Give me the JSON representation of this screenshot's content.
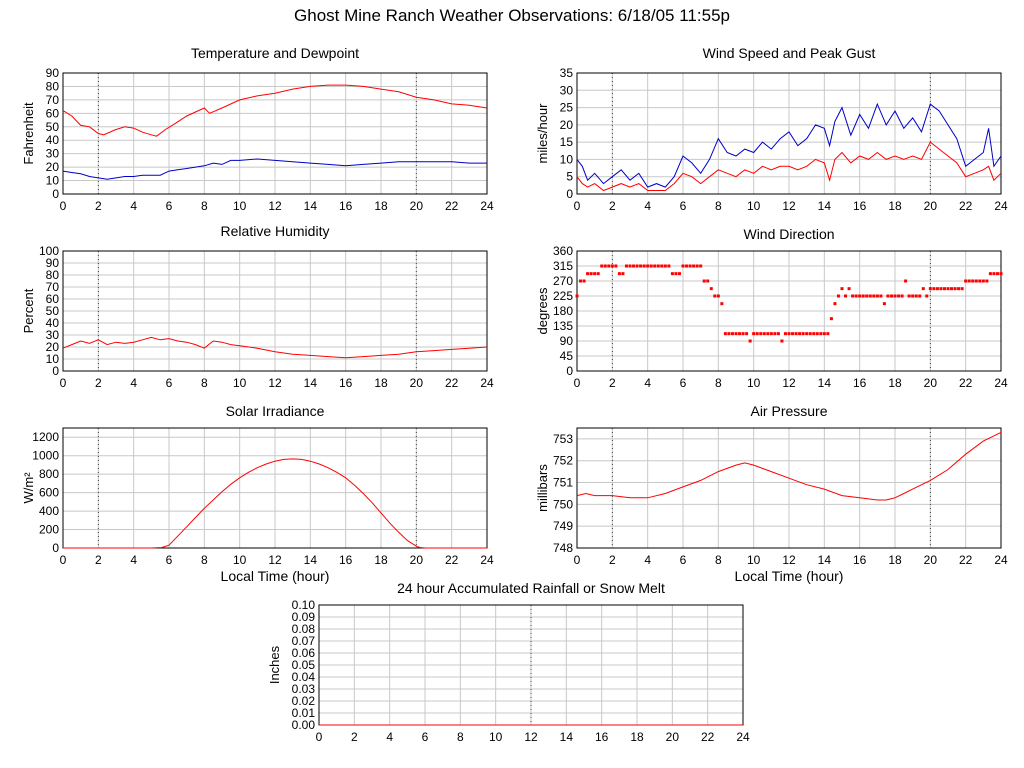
{
  "page_title": "Ghost Mine Ranch Weather Observations: 6/18/05 11:55p",
  "colors": {
    "grid": "#c8c8c8",
    "series_red": "#ff0000",
    "series_blue": "#0000c8",
    "axis": "#000000"
  },
  "chart_data": [
    {
      "id": "temp",
      "type": "line",
      "title": "Temperature and Dewpoint",
      "xlabel": "",
      "ylabel": "Fahrenheit",
      "xlim": [
        0,
        24
      ],
      "ylim": [
        0,
        90
      ],
      "xticks": [
        0,
        2,
        4,
        6,
        8,
        10,
        12,
        14,
        16,
        18,
        20,
        22,
        24
      ],
      "yticks": [
        0,
        10,
        20,
        30,
        40,
        50,
        60,
        70,
        80,
        90
      ],
      "series": [
        {
          "color": "#ff0000",
          "x": [
            0,
            0.5,
            1,
            1.5,
            2,
            2.3,
            3,
            3.5,
            4,
            4.5,
            5,
            5.3,
            5.8,
            6.3,
            7,
            8,
            8.3,
            9,
            10,
            11,
            12,
            13,
            14,
            15,
            16,
            17,
            18,
            19,
            20,
            21,
            22,
            23,
            24
          ],
          "y": [
            62,
            58,
            51,
            50,
            45,
            44,
            48,
            50,
            49,
            46,
            44,
            43,
            48,
            52,
            58,
            64,
            60,
            64,
            70,
            73,
            75,
            78,
            80,
            81,
            81,
            80,
            78,
            76,
            72,
            70,
            67,
            66,
            64
          ]
        },
        {
          "color": "#0000c8",
          "x": [
            0,
            0.5,
            1,
            1.5,
            2,
            2.5,
            3,
            3.5,
            4,
            4.5,
            5,
            5.5,
            6,
            6.5,
            7,
            7.5,
            8,
            8.5,
            9,
            9.5,
            10,
            11,
            12,
            13,
            14,
            15,
            16,
            17,
            18,
            19,
            20,
            21,
            22,
            23,
            24
          ],
          "y": [
            17,
            16,
            15,
            13,
            12,
            11,
            12,
            13,
            13,
            14,
            14,
            14,
            17,
            18,
            19,
            20,
            21,
            23,
            22,
            25,
            25,
            26,
            25,
            24,
            23,
            22,
            21,
            22,
            23,
            24,
            24,
            24,
            24,
            23,
            23
          ]
        }
      ]
    },
    {
      "id": "wind",
      "type": "line",
      "title": "Wind Speed and Peak Gust",
      "xlabel": "",
      "ylabel": "miles/hour",
      "xlim": [
        0,
        24
      ],
      "ylim": [
        0,
        35
      ],
      "xticks": [
        0,
        2,
        4,
        6,
        8,
        10,
        12,
        14,
        16,
        18,
        20,
        22,
        24
      ],
      "yticks": [
        0,
        5,
        10,
        15,
        20,
        25,
        30,
        35
      ],
      "series": [
        {
          "color": "#0000c8",
          "x": [
            0,
            0.3,
            0.6,
            1,
            1.5,
            2,
            2.5,
            3,
            3.5,
            4,
            4.5,
            5,
            5.5,
            6,
            6.5,
            7,
            7.5,
            8,
            8.5,
            9,
            9.5,
            10,
            10.5,
            11,
            11.5,
            12,
            12.5,
            13,
            13.5,
            14,
            14.3,
            14.6,
            15,
            15.5,
            16,
            16.5,
            17,
            17.5,
            18,
            18.5,
            19,
            19.5,
            20,
            20.5,
            21,
            21.5,
            22,
            22.5,
            23,
            23.3,
            23.6,
            24
          ],
          "y": [
            10,
            8,
            4,
            6,
            3,
            5,
            7,
            4,
            6,
            2,
            3,
            2,
            5,
            11,
            9,
            6,
            10,
            16,
            12,
            11,
            13,
            12,
            15,
            13,
            16,
            18,
            14,
            16,
            20,
            19,
            14,
            21,
            25,
            17,
            23,
            19,
            26,
            20,
            24,
            19,
            22,
            18,
            26,
            24,
            20,
            16,
            8,
            10,
            12,
            19,
            8,
            11
          ]
        },
        {
          "color": "#ff0000",
          "x": [
            0,
            0.3,
            0.6,
            1,
            1.5,
            2,
            2.5,
            3,
            3.5,
            4,
            4.5,
            5,
            5.5,
            6,
            6.5,
            7,
            7.5,
            8,
            8.5,
            9,
            9.5,
            10,
            10.5,
            11,
            11.5,
            12,
            12.5,
            13,
            13.5,
            14,
            14.3,
            14.6,
            15,
            15.5,
            16,
            16.5,
            17,
            17.5,
            18,
            18.5,
            19,
            19.5,
            20,
            20.5,
            21,
            21.5,
            22,
            22.5,
            23,
            23.3,
            23.6,
            24
          ],
          "y": [
            5,
            3,
            2,
            3,
            1,
            2,
            3,
            2,
            3,
            1,
            1,
            1,
            3,
            6,
            5,
            3,
            5,
            7,
            6,
            5,
            7,
            6,
            8,
            7,
            8,
            8,
            7,
            8,
            10,
            9,
            4,
            10,
            12,
            9,
            11,
            10,
            12,
            10,
            11,
            10,
            11,
            10,
            15,
            13,
            11,
            9,
            5,
            6,
            7,
            8,
            4,
            6
          ]
        }
      ]
    },
    {
      "id": "rh",
      "type": "line",
      "title": "Relative Humidity",
      "xlabel": "",
      "ylabel": "Percent",
      "xlim": [
        0,
        24
      ],
      "ylim": [
        0,
        100
      ],
      "xticks": [
        0,
        2,
        4,
        6,
        8,
        10,
        12,
        14,
        16,
        18,
        20,
        22,
        24
      ],
      "yticks": [
        0,
        10,
        20,
        30,
        40,
        50,
        60,
        70,
        80,
        90,
        100
      ],
      "series": [
        {
          "color": "#ff0000",
          "x": [
            0,
            0.5,
            1,
            1.5,
            2,
            2.5,
            3,
            3.5,
            4,
            4.5,
            5,
            5.5,
            6,
            6.5,
            7,
            7.5,
            8,
            8.5,
            9,
            9.5,
            10,
            11,
            12,
            13,
            14,
            15,
            16,
            17,
            18,
            19,
            20,
            21,
            22,
            23,
            24
          ],
          "y": [
            19,
            22,
            25,
            23,
            26,
            22,
            24,
            23,
            24,
            26,
            28,
            26,
            27,
            25,
            24,
            22,
            19,
            25,
            24,
            22,
            21,
            19,
            16,
            14,
            13,
            12,
            11,
            12,
            13,
            14,
            16,
            17,
            18,
            19,
            20
          ]
        }
      ]
    },
    {
      "id": "winddir",
      "type": "scatter",
      "title": "Wind Direction",
      "xlabel": "",
      "ylabel": "degrees",
      "xlim": [
        0,
        24
      ],
      "ylim": [
        0,
        360
      ],
      "xticks": [
        0,
        2,
        4,
        6,
        8,
        10,
        12,
        14,
        16,
        18,
        20,
        22,
        24
      ],
      "yticks": [
        0,
        45,
        90,
        135,
        180,
        225,
        270,
        315,
        360
      ],
      "series": [
        {
          "color": "#ff0000",
          "x": [
            0,
            0.2,
            0.4,
            0.6,
            0.8,
            1.0,
            1.2,
            1.4,
            1.6,
            1.8,
            2.0,
            2.2,
            2.4,
            2.6,
            2.8,
            3.0,
            3.2,
            3.4,
            3.6,
            3.8,
            4.0,
            4.2,
            4.4,
            4.6,
            4.8,
            5.0,
            5.2,
            5.4,
            5.6,
            5.8,
            6.0,
            6.2,
            6.4,
            6.6,
            6.8,
            7.0,
            7.2,
            7.4,
            7.6,
            7.8,
            8.0,
            8.2,
            8.4,
            8.6,
            8.8,
            9.0,
            9.2,
            9.4,
            9.6,
            9.8,
            10.0,
            10.2,
            10.4,
            10.6,
            10.8,
            11.0,
            11.2,
            11.4,
            11.6,
            11.8,
            12.0,
            12.2,
            12.4,
            12.6,
            12.8,
            13.0,
            13.2,
            13.4,
            13.6,
            13.8,
            14.0,
            14.2,
            14.4,
            14.6,
            14.8,
            15.0,
            15.2,
            15.4,
            15.6,
            15.8,
            16.0,
            16.2,
            16.4,
            16.6,
            16.8,
            17.0,
            17.2,
            17.4,
            17.6,
            17.8,
            18.0,
            18.2,
            18.4,
            18.6,
            18.8,
            19.0,
            19.2,
            19.4,
            19.6,
            19.8,
            20.0,
            20.2,
            20.4,
            20.6,
            20.8,
            21.0,
            21.2,
            21.4,
            21.6,
            21.8,
            22.0,
            22.2,
            22.4,
            22.6,
            22.8,
            23.0,
            23.2,
            23.4,
            23.6,
            23.8,
            24.0
          ],
          "y": [
            225,
            270,
            270,
            292,
            292,
            292,
            292,
            315,
            315,
            315,
            315,
            315,
            292,
            292,
            315,
            315,
            315,
            315,
            315,
            315,
            315,
            315,
            315,
            315,
            315,
            315,
            315,
            292,
            292,
            292,
            315,
            315,
            315,
            315,
            315,
            315,
            270,
            270,
            247,
            225,
            225,
            202,
            112,
            112,
            112,
            112,
            112,
            112,
            112,
            90,
            112,
            112,
            112,
            112,
            112,
            112,
            112,
            112,
            90,
            112,
            112,
            112,
            112,
            112,
            112,
            112,
            112,
            112,
            112,
            112,
            112,
            112,
            157,
            202,
            225,
            247,
            225,
            247,
            225,
            225,
            225,
            225,
            225,
            225,
            225,
            225,
            225,
            202,
            225,
            225,
            225,
            225,
            225,
            270,
            225,
            225,
            225,
            225,
            247,
            225,
            247,
            247,
            247,
            247,
            247,
            247,
            247,
            247,
            247,
            247,
            270,
            270,
            270,
            270,
            270,
            270,
            270,
            292,
            292,
            292,
            292
          ]
        }
      ]
    },
    {
      "id": "solar",
      "type": "line",
      "title": "Solar Irradiance",
      "xlabel": "Local Time (hour)",
      "ylabel": "W/m²",
      "xlim": [
        0,
        24
      ],
      "ylim": [
        0,
        1300
      ],
      "xticks": [
        0,
        2,
        4,
        6,
        8,
        10,
        12,
        14,
        16,
        18,
        20,
        22,
        24
      ],
      "yticks": [
        0,
        200,
        400,
        600,
        800,
        1000,
        1200
      ],
      "series": [
        {
          "color": "#ff0000",
          "x": [
            0,
            1,
            2,
            3,
            4,
            5,
            5.6,
            6,
            6.3,
            6.6,
            7,
            7.5,
            8,
            8.5,
            9,
            9.5,
            10,
            10.5,
            11,
            11.5,
            12,
            12.5,
            13,
            13.5,
            14,
            14.5,
            15,
            15.5,
            16,
            16.5,
            17,
            17.5,
            18,
            18.5,
            19,
            19.5,
            20,
            20.2,
            20.5,
            21,
            22,
            23,
            24
          ],
          "y": [
            0,
            0,
            0,
            0,
            0,
            0,
            5,
            30,
            90,
            150,
            230,
            330,
            430,
            520,
            610,
            690,
            760,
            820,
            870,
            910,
            940,
            960,
            965,
            960,
            940,
            910,
            870,
            820,
            760,
            680,
            590,
            490,
            380,
            270,
            170,
            80,
            20,
            5,
            0,
            0,
            0,
            0,
            0
          ]
        }
      ]
    },
    {
      "id": "pressure",
      "type": "line",
      "title": "Air Pressure",
      "xlabel": "Local Time (hour)",
      "ylabel": "millibars",
      "xlim": [
        0,
        24
      ],
      "ylim": [
        748,
        753.5
      ],
      "xticks": [
        0,
        2,
        4,
        6,
        8,
        10,
        12,
        14,
        16,
        18,
        20,
        22,
        24
      ],
      "yticks": [
        748,
        749,
        750,
        751,
        752,
        753
      ],
      "series": [
        {
          "color": "#ff0000",
          "x": [
            0,
            0.5,
            1,
            2,
            3,
            4,
            5,
            6,
            7,
            8,
            9,
            9.5,
            10,
            11,
            12,
            13,
            14,
            15,
            16,
            17,
            17.5,
            18,
            18.5,
            19,
            20,
            21,
            22,
            23,
            24
          ],
          "y": [
            750.4,
            750.5,
            750.4,
            750.4,
            750.3,
            750.3,
            750.5,
            750.8,
            751.1,
            751.5,
            751.8,
            751.9,
            751.8,
            751.5,
            751.2,
            750.9,
            750.7,
            750.4,
            750.3,
            750.2,
            750.2,
            750.3,
            750.5,
            750.7,
            751.1,
            751.6,
            752.3,
            752.9,
            753.3
          ]
        }
      ]
    },
    {
      "id": "rain",
      "type": "line",
      "title": "24 hour Accumulated Rainfall or Snow Melt",
      "xlabel": "",
      "ylabel": "Inches",
      "xlim": [
        0,
        24
      ],
      "ylim": [
        0,
        0.1
      ],
      "xticks": [
        0,
        2,
        4,
        6,
        8,
        10,
        12,
        14,
        16,
        18,
        20,
        22,
        24
      ],
      "yticks": [
        "0.00",
        "0.01",
        "0.02",
        "0.03",
        "0.04",
        "0.05",
        "0.06",
        "0.07",
        "0.08",
        "0.09",
        "0.10"
      ],
      "series": [
        {
          "color": "#ff0000",
          "x": [
            0,
            24
          ],
          "y": [
            0,
            0
          ]
        }
      ]
    }
  ]
}
